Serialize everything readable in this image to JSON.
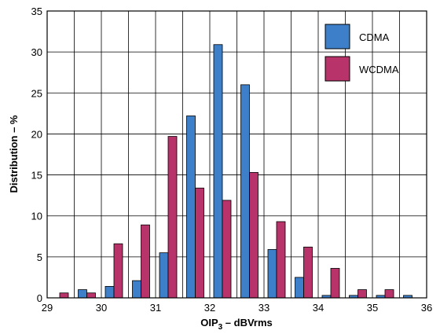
{
  "chart_data": {
    "type": "bar",
    "title": "",
    "xlabel": {
      "main": "OIP",
      "sub": "3",
      "rest": " – dBVrms"
    },
    "ylabel": "Distribution – %",
    "xlim": [
      29,
      36
    ],
    "ylim": [
      0,
      35
    ],
    "x_ticks": [
      29,
      30,
      31,
      32,
      33,
      34,
      35,
      36
    ],
    "y_ticks": [
      0,
      5,
      10,
      15,
      20,
      25,
      30,
      35
    ],
    "bin_width": 0.5,
    "grid": true,
    "legend": {
      "position": "top-right"
    },
    "series": [
      {
        "name": "CDMA",
        "color": "#3d7fc9",
        "points": [
          {
            "x": 29.0,
            "y": 0
          },
          {
            "x": 29.5,
            "y": 1.0
          },
          {
            "x": 30.0,
            "y": 1.4
          },
          {
            "x": 30.5,
            "y": 2.1
          },
          {
            "x": 31.0,
            "y": 5.5
          },
          {
            "x": 31.5,
            "y": 22.2
          },
          {
            "x": 32.0,
            "y": 30.9
          },
          {
            "x": 32.5,
            "y": 26.0
          },
          {
            "x": 33.0,
            "y": 5.9
          },
          {
            "x": 33.5,
            "y": 2.5
          },
          {
            "x": 34.0,
            "y": 0.3
          },
          {
            "x": 34.5,
            "y": 0.3
          },
          {
            "x": 35.0,
            "y": 0.3
          },
          {
            "x": 35.5,
            "y": 0.3
          }
        ]
      },
      {
        "name": "WCDMA",
        "color": "#b8336a",
        "points": [
          {
            "x": 29.0,
            "y": 0.6
          },
          {
            "x": 29.5,
            "y": 0.6
          },
          {
            "x": 30.0,
            "y": 6.6
          },
          {
            "x": 30.5,
            "y": 8.9
          },
          {
            "x": 31.0,
            "y": 19.7
          },
          {
            "x": 31.5,
            "y": 13.4
          },
          {
            "x": 32.0,
            "y": 11.9
          },
          {
            "x": 32.5,
            "y": 15.3
          },
          {
            "x": 33.0,
            "y": 9.3
          },
          {
            "x": 33.5,
            "y": 6.2
          },
          {
            "x": 34.0,
            "y": 3.6
          },
          {
            "x": 34.5,
            "y": 1.0
          },
          {
            "x": 35.0,
            "y": 1.0
          }
        ]
      }
    ]
  }
}
